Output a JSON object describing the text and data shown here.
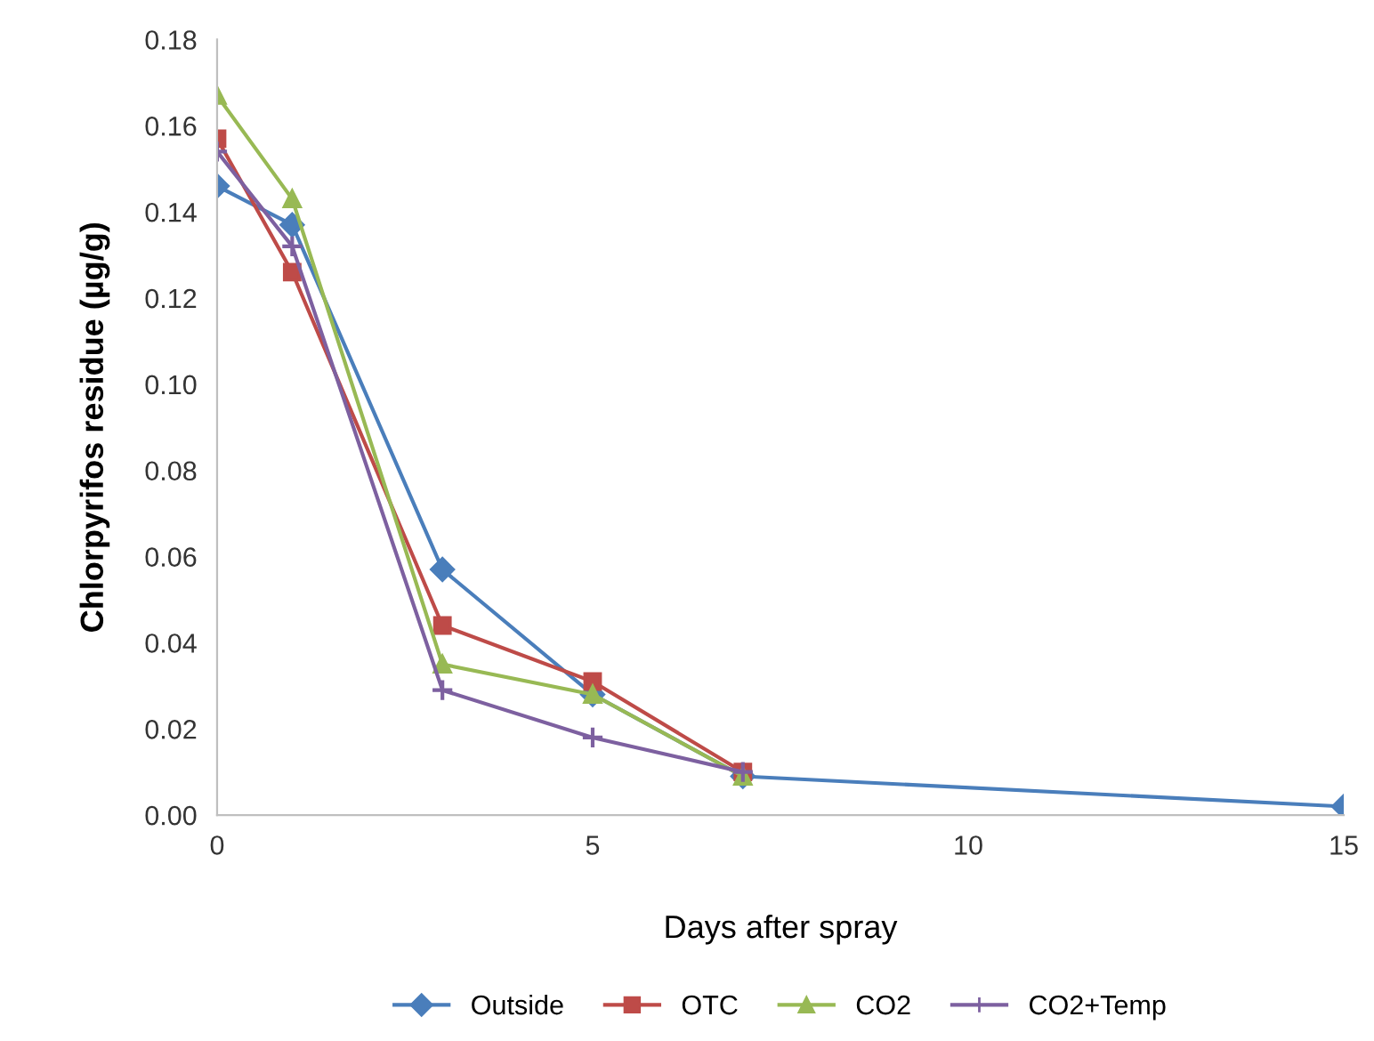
{
  "chart_data": {
    "type": "line",
    "xlabel": "Days after spray",
    "ylabel": "Chlorpyrifos residue (µg/g)",
    "xlim": [
      0,
      15
    ],
    "xticks": [
      0,
      5,
      10,
      15
    ],
    "ylim": [
      0,
      0.18
    ],
    "yticks": [
      {
        "value": 0,
        "label": "0.00"
      },
      {
        "value": 0.02,
        "label": "0.02"
      },
      {
        "value": 0.04,
        "label": "0.04"
      },
      {
        "value": 0.06,
        "label": "0.06"
      },
      {
        "value": 0.08,
        "label": "0.08"
      },
      {
        "value": 0.1,
        "label": "0.10"
      },
      {
        "value": 0.12,
        "label": "0.12"
      },
      {
        "value": 0.14,
        "label": "0.14"
      },
      {
        "value": 0.16,
        "label": "0.16"
      },
      {
        "value": 0.18,
        "label": "0.18"
      }
    ],
    "grid": false,
    "legend": "bottom",
    "series": [
      {
        "name": "Outside",
        "color": "#4a7ebb",
        "marker": "diamond",
        "x": [
          0,
          1,
          3,
          5,
          7,
          15
        ],
        "values": [
          0.146,
          0.137,
          0.057,
          0.028,
          0.009,
          0.002
        ]
      },
      {
        "name": "OTC",
        "color": "#be4b48",
        "marker": "square",
        "x": [
          0,
          1,
          3,
          5,
          7
        ],
        "values": [
          0.157,
          0.126,
          0.044,
          0.031,
          0.01
        ]
      },
      {
        "name": "CO2",
        "color": "#98b954",
        "marker": "triangle",
        "x": [
          0,
          1,
          3,
          5,
          7
        ],
        "values": [
          0.167,
          0.143,
          0.035,
          0.028,
          0.009
        ]
      },
      {
        "name": "CO2+Temp",
        "color": "#7d60a0",
        "marker": "cross",
        "x": [
          0,
          1,
          3,
          5,
          7
        ],
        "values": [
          0.154,
          0.132,
          0.029,
          0.018,
          0.01
        ]
      }
    ]
  }
}
